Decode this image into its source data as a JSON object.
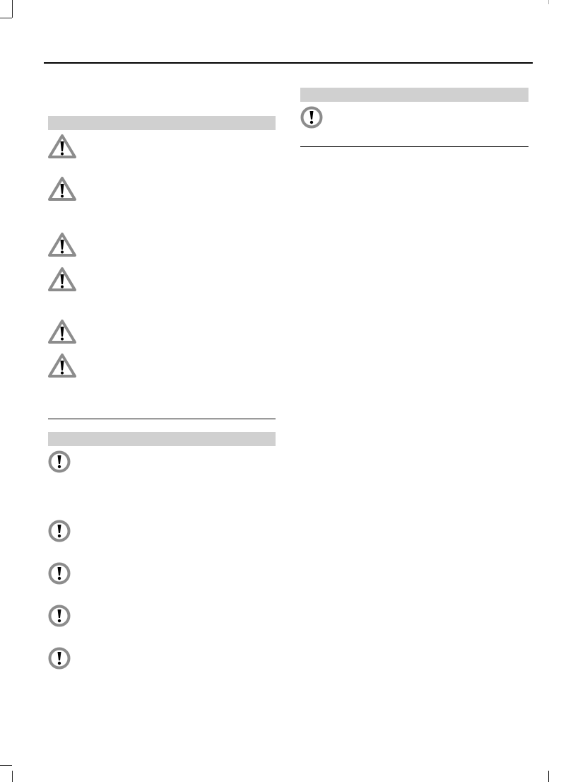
{
  "colors": {
    "section_bar": "#d0d0d0",
    "icon_gray": "#8c8c8c",
    "rule": "#000000"
  },
  "left_column": {
    "warnings_section": {
      "icon": "warning-triangle-icon",
      "count": 6
    },
    "notices_section": {
      "icon": "notice-circle-exclamation-icon",
      "count": 5
    }
  },
  "right_column": {
    "notices_section": {
      "icon": "notice-circle-exclamation-icon",
      "count": 1
    }
  }
}
